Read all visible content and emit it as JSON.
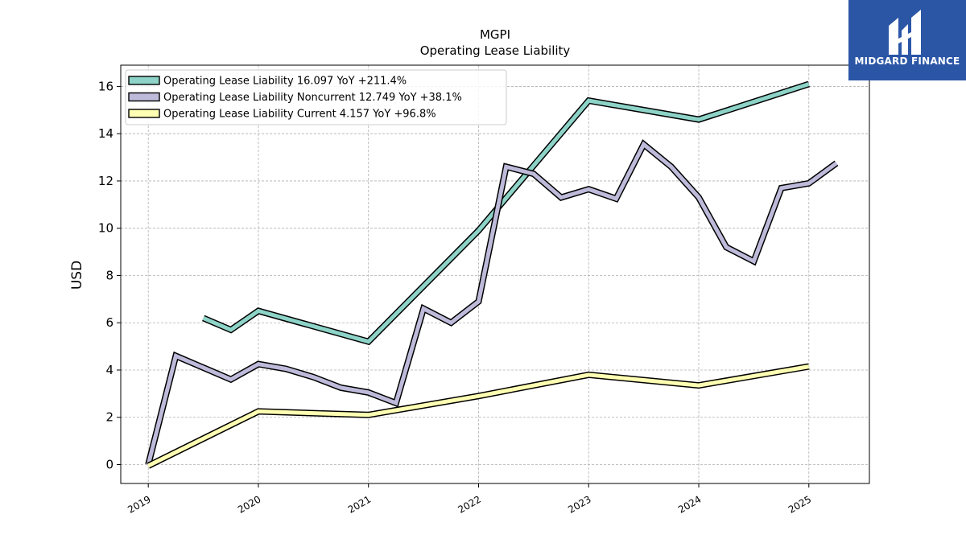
{
  "chart_data": {
    "type": "line",
    "title": "MGPI",
    "subtitle": "Operating Lease Liability",
    "xlabel": "",
    "ylabel": "USD",
    "x_ticks": [
      "2019",
      "2020",
      "2021",
      "2022",
      "2023",
      "2024",
      "2025"
    ],
    "y_ticks": [
      "0",
      "2",
      "4",
      "6",
      "8",
      "10",
      "12",
      "14",
      "16"
    ],
    "xlim": [
      2018.75,
      2025.55
    ],
    "ylim": [
      -0.8,
      16.9
    ],
    "grid": true,
    "legend_position": "top-left",
    "series": [
      {
        "name": "Operating Lease Liability",
        "legend_label": "Operating Lease Liability  16.097 YoY +211.4%",
        "color": "#8dd3c7",
        "points": [
          [
            2019.5,
            6.2
          ],
          [
            2019.75,
            5.7
          ],
          [
            2020.0,
            6.5
          ],
          [
            2021.0,
            5.2
          ],
          [
            2022.0,
            9.9
          ],
          [
            2023.0,
            15.4
          ],
          [
            2024.0,
            14.6
          ],
          [
            2025.0,
            16.1
          ]
        ]
      },
      {
        "name": "Operating Lease Liability Noncurrent",
        "legend_label": "Operating Lease Liability Noncurrent  12.749 YoY +38.1%",
        "color": "#bebada",
        "points": [
          [
            2019.0,
            0.0
          ],
          [
            2019.25,
            4.6
          ],
          [
            2019.75,
            3.6
          ],
          [
            2020.0,
            4.25
          ],
          [
            2020.25,
            4.05
          ],
          [
            2020.5,
            3.7
          ],
          [
            2020.75,
            3.25
          ],
          [
            2021.0,
            3.05
          ],
          [
            2021.25,
            2.6
          ],
          [
            2021.5,
            6.6
          ],
          [
            2021.75,
            6.0
          ],
          [
            2022.0,
            6.9
          ],
          [
            2022.25,
            12.6
          ],
          [
            2022.5,
            12.3
          ],
          [
            2022.75,
            11.3
          ],
          [
            2023.0,
            11.65
          ],
          [
            2023.25,
            11.25
          ],
          [
            2023.5,
            13.55
          ],
          [
            2023.75,
            12.6
          ],
          [
            2024.0,
            11.3
          ],
          [
            2024.25,
            9.2
          ],
          [
            2024.5,
            8.6
          ],
          [
            2024.75,
            11.7
          ],
          [
            2025.0,
            11.9
          ],
          [
            2025.25,
            12.75
          ]
        ]
      },
      {
        "name": "Operating Lease Liability Current",
        "legend_label": "Operating Lease Liability Current  4.157 YoY +96.8%",
        "color": "#ffffb3",
        "points": [
          [
            2019.0,
            -0.05
          ],
          [
            2020.0,
            2.25
          ],
          [
            2021.0,
            2.1
          ],
          [
            2022.0,
            2.9
          ],
          [
            2023.0,
            3.8
          ],
          [
            2024.0,
            3.35
          ],
          [
            2025.0,
            4.15
          ]
        ]
      }
    ]
  },
  "logo": {
    "text": "MIDGARD FINANCE",
    "background": "#2b56a6"
  }
}
